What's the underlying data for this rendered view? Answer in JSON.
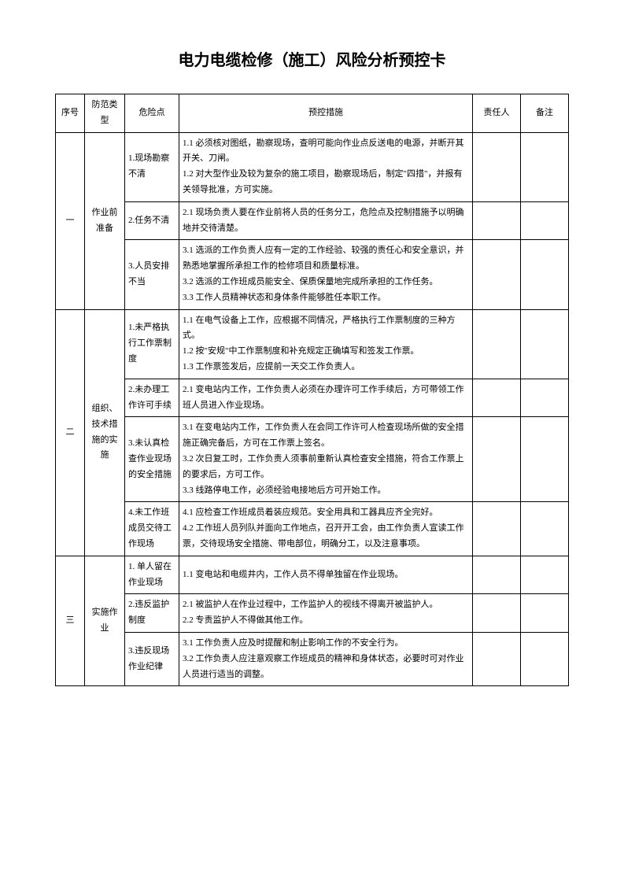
{
  "title": "电力电缆检修（施工）风险分析预控卡",
  "headers": {
    "seq": "序号",
    "type": "防范类型",
    "risk": "危险点",
    "measure": "预控措施",
    "resp": "责任人",
    "note": "备注"
  },
  "rows": [
    {
      "seq": "一",
      "type": "作业前准备",
      "risk": "1.现场勘察不清",
      "measure": "1.1 必须核对图纸，勘察现场，查明可能向作业点反送电的电源，并断开其开关、刀闸。\n1.2 对大型作业及较为复杂的施工项目，勘察现场后，制定\"四措\"，并报有关领导批准，方可实施。",
      "resp": "",
      "note": "",
      "typeSpan": 1,
      "seqSpan": 1
    },
    {
      "risk": "2.任务不清",
      "measure": "2.1 现场负责人要在作业前将人员的任务分工，危险点及控制措施予以明确地并交待清楚。",
      "resp": "",
      "note": ""
    },
    {
      "risk": "3.人员安排不当",
      "measure": "3.1 选派的工作负责人应有一定的工作经验、较强的责任心和安全意识，并熟悉地掌握所承担工作的检修项目和质量标准。\n3.2 选派的工作班成员能安全、保质保量地完成所承担的工作任务。\n3.3 工作人员精神状态和身体条件能够胜任本职工作。",
      "resp": "",
      "note": ""
    },
    {
      "seq": "二",
      "type": "组织、技术措施的实施",
      "risk": "1.未严格执行工作票制度",
      "measure": "1.1 在电气设备上工作，应根据不同情况，严格执行工作票制度的三种方式。\n1.2 按\"安规\"中工作票制度和补充规定正确填写和签发工作票。\n1.3 工作票签发后，应提前一天交工作负责人。",
      "resp": "",
      "note": "",
      "typeSpan": 1,
      "seqSpan": 1
    },
    {
      "risk": "2.未办理工作许可手续",
      "measure": "2.1 变电站内工作，工作负责人必须在办理许可工作手续后，方可带领工作班人员进入作业现场。",
      "resp": "",
      "note": ""
    },
    {
      "risk": "3.未认真检查作业现场的安全措施",
      "measure": "3.1 在变电站内工作，工作负责人在会同工作许可人检查现场所做的安全措施正确完备后，方可在工作票上签名。\n3.2 次日复工时，工作负责人须事前重新认真检查安全措施，符合工作票上的要求后，方可工作。\n3.3 线路停电工作，必须经验电接地后方可开始工作。",
      "resp": "",
      "note": ""
    },
    {
      "risk": "4.未工作班成员交待工作现场",
      "measure": "4.1 应检查工作班成员着装应规范。安全用具和工器具应齐全完好。\n4.2 工作班人员列队并面向工作地点，召开开工会，由工作负责人宣读工作票，交待现场安全措施、带电部位，明确分工，以及注意事项。",
      "resp": "",
      "note": ""
    },
    {
      "seq": "三",
      "type": "实施作业",
      "risk": "1. 单人留在作业现场",
      "measure": "1.1 变电站和电缆井内，工作人员不得单独留在作业现场。",
      "resp": "",
      "note": "",
      "typeSpan": 1,
      "seqSpan": 1
    },
    {
      "risk": "2.违反监护制度",
      "measure": "2.1 被监护人在作业过程中，工作监护人的视线不得离开被监护人。\n2.2 专责监护人不得做其他工作。",
      "resp": "",
      "note": ""
    },
    {
      "risk": "3.违反现场作业纪律",
      "measure": "3.1 工作负责人应及时提醒和制止影响工作的不安全行为。\n3.2 工作负责人应注意观察工作班成员的精神和身体状态，必要时可对作业人员进行适当的调整。",
      "resp": "",
      "note": ""
    }
  ]
}
